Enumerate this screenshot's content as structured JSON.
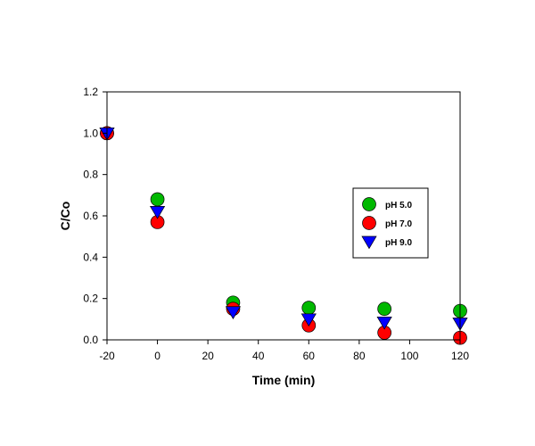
{
  "chart_data": {
    "type": "scatter",
    "title": "",
    "xlabel": "Time (min)",
    "ylabel": "C/Co",
    "xlim": [
      -20,
      120
    ],
    "ylim": [
      0.0,
      1.2
    ],
    "xticks": [
      "-20",
      "0",
      "20",
      "40",
      "60",
      "80",
      "100",
      "120"
    ],
    "yticks": [
      "0.0",
      "0.2",
      "0.4",
      "0.6",
      "0.8",
      "1.0",
      "1.2"
    ],
    "grid": false,
    "legend_position": "right",
    "series": [
      {
        "name": "pH 5.0",
        "marker": "circle",
        "color": "#00b800",
        "x": [
          -20,
          0,
          30,
          60,
          90,
          120
        ],
        "y": [
          1.0,
          0.68,
          0.18,
          0.155,
          0.15,
          0.14
        ]
      },
      {
        "name": "pH 7.0",
        "marker": "circle",
        "color": "#ff0000",
        "x": [
          -20,
          0,
          30,
          60,
          90,
          120
        ],
        "y": [
          1.0,
          0.57,
          0.15,
          0.07,
          0.035,
          0.01
        ]
      },
      {
        "name": "pH 9.0",
        "marker": "triangle-down",
        "color": "#0000ff",
        "x": [
          -20,
          0,
          30,
          60,
          90,
          120
        ],
        "y": [
          1.0,
          0.62,
          0.135,
          0.1,
          0.085,
          0.08
        ]
      }
    ]
  }
}
